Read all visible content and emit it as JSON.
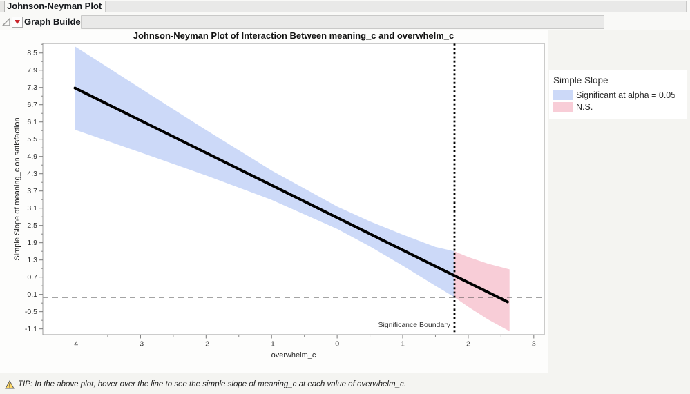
{
  "window": {
    "outline_title": "Johnson-Neyman Plot",
    "section_title": "Graph Builder"
  },
  "chart_data": {
    "type": "line",
    "title": "Johnson-Neyman Plot of Interaction Between meaning_c and overwhelm_c",
    "xlabel": "overwhelm_c",
    "ylabel": "Simple Slope of meaning_c on satisfaction",
    "xlim": [
      -4.49,
      3.16
    ],
    "ylim": [
      -1.3,
      8.83
    ],
    "x_ticks": [
      -4,
      -3,
      -2,
      -1,
      0,
      1,
      2,
      3
    ],
    "y_ticks": [
      8.5,
      7.9,
      7.3,
      6.7,
      6.1,
      5.5,
      4.9,
      4.3,
      3.7,
      3.1,
      2.5,
      1.9,
      1.3,
      0.7,
      0.1,
      -0.5,
      -1.1
    ],
    "grid": false,
    "line": {
      "x1": -4,
      "y1": 7.28,
      "x2": 2.6,
      "y2": -0.16,
      "color": "#000000",
      "width": 4
    },
    "ci_band": {
      "x": [
        -4,
        -3,
        -2,
        -1,
        0,
        0.5,
        1,
        1.5,
        1.79,
        2,
        2.3,
        2.63
      ],
      "upper": [
        8.73,
        7.27,
        5.82,
        4.41,
        3.16,
        2.64,
        2.18,
        1.75,
        1.6,
        1.4,
        1.17,
        0.97
      ],
      "lower": [
        5.83,
        5.04,
        4.24,
        3.39,
        2.38,
        1.77,
        1.1,
        0.4,
        0.0,
        -0.33,
        -0.77,
        -1.18
      ]
    },
    "regions": [
      {
        "name": "significant",
        "color": "#ccd9f8",
        "x_from": -4,
        "x_to": 1.79
      },
      {
        "name": "ns",
        "color": "#f8cdd7",
        "x_from": 1.79,
        "x_to": 2.63
      }
    ],
    "significance_boundary_x": 1.79,
    "boundary_label": "Significance Boundary",
    "zero_line_y": 0,
    "legend": {
      "title": "Simple Slope",
      "position": "right",
      "entries": [
        {
          "label": "Significant at alpha = 0.05",
          "color": "#ccd9f8"
        },
        {
          "label": "N.S.",
          "color": "#f8cdd7"
        }
      ]
    }
  },
  "tip": {
    "text": "TIP: In the above plot, hover over the line to see the simple slope of meaning_c at each value of overwhelm_c."
  }
}
